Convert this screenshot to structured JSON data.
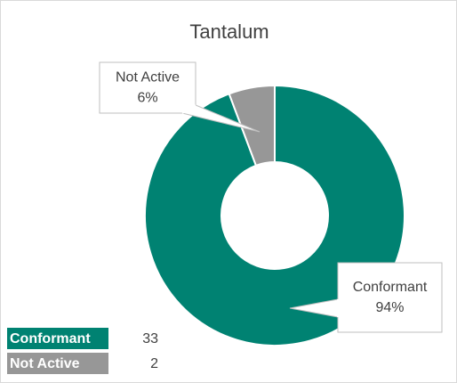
{
  "chart_data": {
    "type": "donut",
    "title": "Tantalum",
    "categories": [
      "Conformant",
      "Not Active"
    ],
    "values": [
      33,
      2
    ],
    "value_labels": [
      "94%",
      "6%"
    ],
    "colors": [
      "#008272",
      "#979797"
    ]
  }
}
